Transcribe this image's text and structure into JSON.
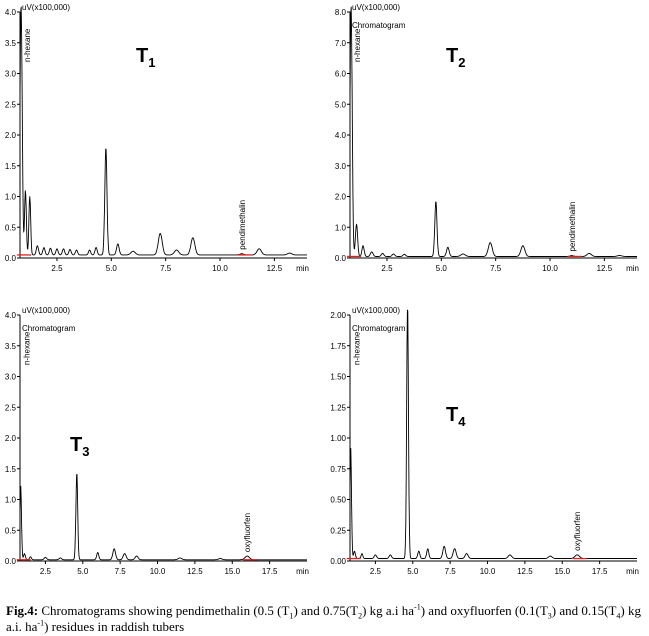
{
  "figure": {
    "caption": {
      "label": "Fig.4:",
      "p1": " Chromatograms showing pendimethalin (0.5 (T",
      "s1": "1",
      "p2": ") and 0.75(T",
      "s2": "2",
      "p3": ") kg a.i ha",
      "sup1": "-1",
      "p4": ") and oxyfluorfen (0.1(T",
      "s3": "3",
      "p5": ") and 0.15(T",
      "s4": "4",
      "p6": ") kg a.i. ha",
      "sup2": "-1",
      "p7": ") residues in raddish tubers"
    }
  },
  "chart_data": [
    {
      "type": "line",
      "panel_label": "T",
      "panel_sub": "1",
      "chromatogram_label": "",
      "unit": "uV(x100,000)",
      "xlabel": "min",
      "ylim": [
        0,
        4.0
      ],
      "y_ticks": [
        "0.0",
        "0.5",
        "1.0",
        "1.5",
        "2.0",
        "2.5",
        "3.0",
        "3.5",
        "4.0"
      ],
      "y_tick_values": [
        0,
        0.5,
        1.0,
        1.5,
        2.0,
        2.5,
        3.0,
        3.5,
        4.0
      ],
      "xlim": [
        0.8,
        14.0
      ],
      "x_ticks": [
        "2.5",
        "5.0",
        "7.5",
        "10.0",
        "12.5"
      ],
      "x_tick_values": [
        2.5,
        5.0,
        7.5,
        10.0,
        12.5
      ],
      "baseline": 0.05,
      "peaks": [
        {
          "rt": 0.85,
          "h": 4.1,
          "w": 0.05,
          "label": "n-hexane"
        },
        {
          "rt": 1.05,
          "h": 1.05,
          "w": 0.04
        },
        {
          "rt": 1.25,
          "h": 0.95,
          "w": 0.04
        },
        {
          "rt": 1.6,
          "h": 0.15,
          "w": 0.05
        },
        {
          "rt": 1.9,
          "h": 0.12,
          "w": 0.05
        },
        {
          "rt": 2.2,
          "h": 0.11,
          "w": 0.05
        },
        {
          "rt": 2.5,
          "h": 0.1,
          "w": 0.05
        },
        {
          "rt": 2.8,
          "h": 0.1,
          "w": 0.05
        },
        {
          "rt": 3.1,
          "h": 0.09,
          "w": 0.05
        },
        {
          "rt": 3.4,
          "h": 0.08,
          "w": 0.05
        },
        {
          "rt": 4.0,
          "h": 0.08,
          "w": 0.05
        },
        {
          "rt": 4.3,
          "h": 0.12,
          "w": 0.05
        },
        {
          "rt": 4.75,
          "h": 1.75,
          "w": 0.05
        },
        {
          "rt": 5.3,
          "h": 0.18,
          "w": 0.06
        },
        {
          "rt": 6.0,
          "h": 0.06,
          "w": 0.1
        },
        {
          "rt": 7.25,
          "h": 0.35,
          "w": 0.09
        },
        {
          "rt": 8.0,
          "h": 0.08,
          "w": 0.1
        },
        {
          "rt": 8.75,
          "h": 0.28,
          "w": 0.09
        },
        {
          "rt": 11.0,
          "h": 0.02,
          "w": 0.08,
          "label": "pendimethalin"
        },
        {
          "rt": 11.8,
          "h": 0.1,
          "w": 0.1
        },
        {
          "rt": 13.2,
          "h": 0.03,
          "w": 0.1
        }
      ],
      "marked_peaks": [
        0,
        18
      ]
    },
    {
      "type": "line",
      "panel_label": "T",
      "panel_sub": "2",
      "chromatogram_label": "Chromatogram",
      "unit": "uV(x100,000)",
      "xlabel": "min",
      "ylim": [
        0,
        8.0
      ],
      "y_ticks": [
        "0.0",
        "1.0",
        "2.0",
        "3.0",
        "4.0",
        "5.0",
        "6.0",
        "7.0",
        "8.0"
      ],
      "y_tick_values": [
        0,
        1,
        2,
        3,
        4,
        5,
        6,
        7,
        8
      ],
      "xlim": [
        0.8,
        14.0
      ],
      "x_ticks": [
        "2.5",
        "5.0",
        "7.5",
        "10.0",
        "12.5"
      ],
      "x_tick_values": [
        2.5,
        5.0,
        7.5,
        10.0,
        12.5
      ],
      "baseline": 0.05,
      "peaks": [
        {
          "rt": 0.85,
          "h": 8.2,
          "w": 0.05,
          "label": "n-hexane"
        },
        {
          "rt": 1.1,
          "h": 1.05,
          "w": 0.05
        },
        {
          "rt": 1.4,
          "h": 0.35,
          "w": 0.05
        },
        {
          "rt": 1.8,
          "h": 0.15,
          "w": 0.06
        },
        {
          "rt": 2.3,
          "h": 0.1,
          "w": 0.06
        },
        {
          "rt": 2.8,
          "h": 0.08,
          "w": 0.06
        },
        {
          "rt": 3.3,
          "h": 0.07,
          "w": 0.06
        },
        {
          "rt": 4.75,
          "h": 1.8,
          "w": 0.05
        },
        {
          "rt": 5.3,
          "h": 0.3,
          "w": 0.06
        },
        {
          "rt": 6.0,
          "h": 0.08,
          "w": 0.1
        },
        {
          "rt": 7.25,
          "h": 0.45,
          "w": 0.09
        },
        {
          "rt": 8.75,
          "h": 0.35,
          "w": 0.09
        },
        {
          "rt": 11.0,
          "h": 0.03,
          "w": 0.08,
          "label": "pendimethalin"
        },
        {
          "rt": 11.8,
          "h": 0.1,
          "w": 0.1
        },
        {
          "rt": 13.2,
          "h": 0.03,
          "w": 0.1
        }
      ],
      "marked_peaks": [
        0,
        12
      ]
    },
    {
      "type": "line",
      "panel_label": "T",
      "panel_sub": "3",
      "chromatogram_label": "Chromatogram",
      "unit": "uV(x100,000)",
      "xlabel": "min",
      "ylim": [
        0,
        4.0
      ],
      "y_ticks": [
        "0.0",
        "0.5",
        "1.0",
        "1.5",
        "2.0",
        "2.5",
        "3.0",
        "3.5",
        "4.0"
      ],
      "y_tick_values": [
        0,
        0.5,
        1.0,
        1.5,
        2.0,
        2.5,
        3.0,
        3.5,
        4.0
      ],
      "xlim": [
        0.8,
        20.0
      ],
      "x_ticks": [
        "2.5",
        "5.0",
        "7.5",
        "10.0",
        "12.5",
        "15.0",
        "17.5"
      ],
      "x_tick_values": [
        2.5,
        5.0,
        7.5,
        10.0,
        12.5,
        15.0,
        17.5
      ],
      "baseline": 0.02,
      "peaks": [
        {
          "rt": 0.85,
          "h": 1.2,
          "w": 0.05,
          "label": "n-hexane"
        },
        {
          "rt": 1.1,
          "h": 0.1,
          "w": 0.06
        },
        {
          "rt": 1.5,
          "h": 0.05,
          "w": 0.06
        },
        {
          "rt": 2.5,
          "h": 0.04,
          "w": 0.08
        },
        {
          "rt": 3.5,
          "h": 0.03,
          "w": 0.08
        },
        {
          "rt": 4.6,
          "h": 1.42,
          "w": 0.06
        },
        {
          "rt": 6.0,
          "h": 0.12,
          "w": 0.07
        },
        {
          "rt": 7.1,
          "h": 0.18,
          "w": 0.09
        },
        {
          "rt": 7.8,
          "h": 0.1,
          "w": 0.1
        },
        {
          "rt": 8.6,
          "h": 0.06,
          "w": 0.1
        },
        {
          "rt": 11.5,
          "h": 0.03,
          "w": 0.12
        },
        {
          "rt": 14.2,
          "h": 0.02,
          "w": 0.12
        },
        {
          "rt": 16.0,
          "h": 0.06,
          "w": 0.15,
          "label": "oxyfluorfen"
        }
      ],
      "marked_peaks": [
        0,
        12
      ]
    },
    {
      "type": "line",
      "panel_label": "T",
      "panel_sub": "4",
      "chromatogram_label": "Chromatogram",
      "unit": "uV(x100,000)",
      "xlabel": "min",
      "ylim": [
        0,
        2.0
      ],
      "y_ticks": [
        "0.00",
        "0.25",
        "0.50",
        "0.75",
        "1.00",
        "1.25",
        "1.50",
        "1.75",
        "2.00"
      ],
      "y_tick_values": [
        0,
        0.25,
        0.5,
        0.75,
        1.0,
        1.25,
        1.5,
        1.75,
        2.0
      ],
      "xlim": [
        0.8,
        20.0
      ],
      "x_ticks": [
        "2.5",
        "5.0",
        "7.5",
        "10.0",
        "12.5",
        "15.0",
        "17.5"
      ],
      "x_tick_values": [
        2.5,
        5.0,
        7.5,
        10.0,
        12.5,
        15.0,
        17.5
      ],
      "baseline": 0.02,
      "peaks": [
        {
          "rt": 0.85,
          "h": 0.9,
          "w": 0.05,
          "label": "n-hexane"
        },
        {
          "rt": 1.1,
          "h": 0.06,
          "w": 0.06
        },
        {
          "rt": 1.6,
          "h": 0.04,
          "w": 0.06
        },
        {
          "rt": 2.5,
          "h": 0.03,
          "w": 0.08
        },
        {
          "rt": 3.5,
          "h": 0.03,
          "w": 0.08
        },
        {
          "rt": 4.65,
          "h": 2.1,
          "w": 0.06
        },
        {
          "rt": 5.4,
          "h": 0.06,
          "w": 0.07
        },
        {
          "rt": 6.0,
          "h": 0.08,
          "w": 0.07
        },
        {
          "rt": 7.1,
          "h": 0.1,
          "w": 0.09
        },
        {
          "rt": 7.8,
          "h": 0.08,
          "w": 0.1
        },
        {
          "rt": 8.6,
          "h": 0.04,
          "w": 0.1
        },
        {
          "rt": 11.5,
          "h": 0.03,
          "w": 0.12
        },
        {
          "rt": 14.2,
          "h": 0.02,
          "w": 0.12
        },
        {
          "rt": 16.0,
          "h": 0.03,
          "w": 0.15,
          "label": "oxyfluorfen"
        }
      ],
      "marked_peaks": [
        0,
        13
      ]
    }
  ]
}
